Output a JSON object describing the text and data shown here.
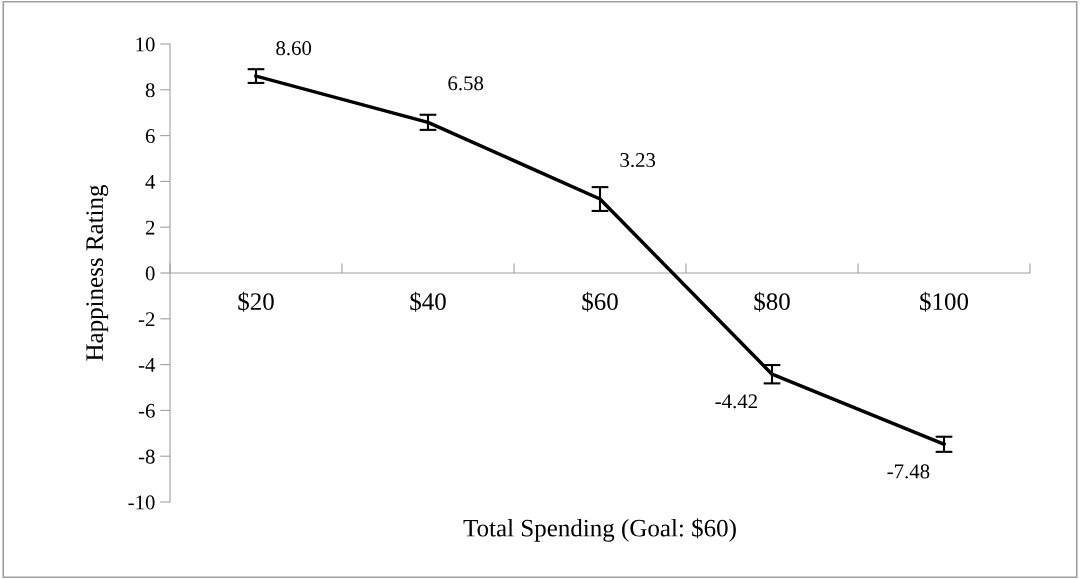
{
  "chart_data": {
    "type": "line",
    "xlabel": "Total Spending (Goal: $60)",
    "ylabel": "Happiness Rating",
    "categories": [
      "$20",
      "$40",
      "$60",
      "$80",
      "$100"
    ],
    "series": [
      {
        "color": "#000000",
        "values": [
          8.6,
          6.58,
          3.23,
          -4.42,
          -7.48
        ],
        "errors": [
          0.3,
          0.33,
          0.52,
          0.4,
          0.33
        ],
        "value_labels": [
          "8.60",
          "6.58",
          "3.23",
          "-4.42",
          "-7.48"
        ]
      }
    ],
    "ylim": [
      -10,
      10
    ],
    "yticks": [
      -10,
      -8,
      -6,
      -4,
      -2,
      0,
      2,
      4,
      6,
      8,
      10
    ],
    "grid": false,
    "legend": false,
    "marker": "none",
    "line_style": "solid"
  }
}
